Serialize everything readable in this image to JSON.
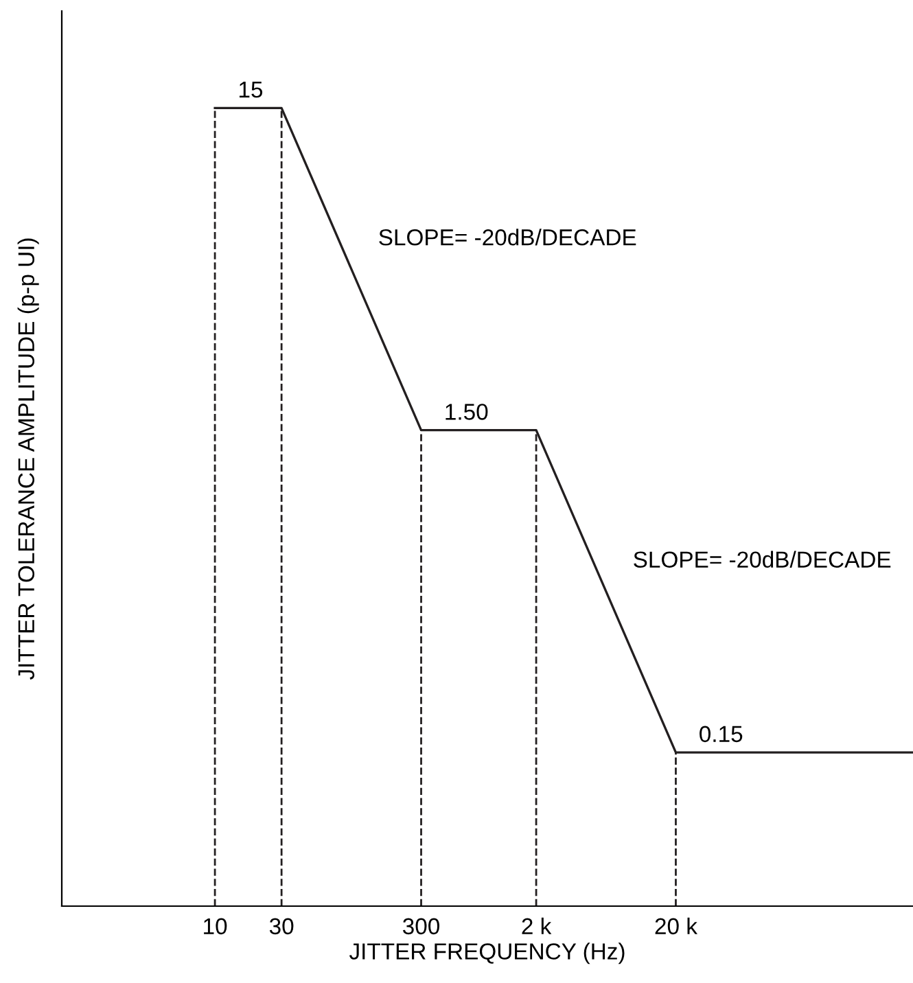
{
  "chart_data": {
    "type": "line",
    "xlabel": "JITTER FREQUENCY (Hz)",
    "ylabel": "JITTER TOLERANCE AMPLITUDE (p-p UI)",
    "x": [
      10,
      30,
      300,
      2000,
      20000,
      1000000
    ],
    "series": [
      {
        "color": "#231f20",
        "values": [
          15,
          15,
          1.5,
          1.5,
          0.15,
          0.15
        ],
        "value_labels": [
          "15",
          null,
          "1.50",
          null,
          "0.15",
          null
        ]
      }
    ],
    "log": "xy",
    "xlim": [
      0.8,
      1000000
    ],
    "ylim": [
      0.05,
      30
    ],
    "xticks": [
      10,
      30,
      300,
      {
        "value": 2000,
        "label": "2 k"
      },
      {
        "value": 20000,
        "label": "20 k"
      }
    ],
    "tick_labels": "x",
    "grid": false,
    "legend": false,
    "marker": "none",
    "line_style": "solid",
    "ref_lines": [
      {
        "axis": "x",
        "value": 10,
        "line_style": "dashed",
        "color": "#231f20"
      },
      {
        "axis": "x",
        "value": 30,
        "line_style": "dashed",
        "color": "#231f20"
      },
      {
        "axis": "x",
        "value": 300,
        "line_style": "dashed",
        "color": "#231f20"
      },
      {
        "axis": "x",
        "value": 2000,
        "line_style": "dashed",
        "color": "#231f20"
      },
      {
        "axis": "x",
        "value": 20000,
        "line_style": "dashed",
        "color": "#231f20"
      }
    ],
    "annotations": [
      "SLOPE= -20dB/DECADE",
      "SLOPE= -20dB/DECADE"
    ]
  }
}
